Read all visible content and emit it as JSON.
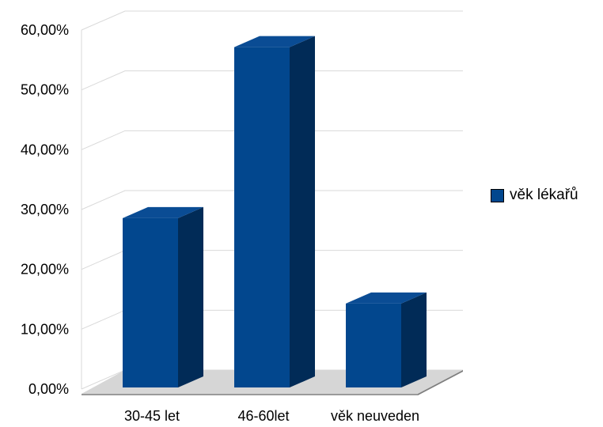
{
  "chart_data": {
    "type": "bar",
    "title": "",
    "xlabel": "",
    "ylabel": "",
    "categories": [
      "30-45 let",
      "46-60let",
      "věk neuveden"
    ],
    "series": [
      {
        "name": "věk lékařů",
        "values": [
          0.2857,
          0.5714,
          0.1429
        ]
      }
    ],
    "ylim": [
      0,
      0.6
    ],
    "yticks": [
      "0,00%",
      "10,00%",
      "20,00%",
      "30,00%",
      "40,00%",
      "50,00%",
      "60,00%"
    ],
    "grid": true,
    "legend_position": "right",
    "colors": {
      "bar_front": "#02478E",
      "bar_side": "#012B57",
      "bar_top": "#0A4C94",
      "floor": "#D6D6D6",
      "grid": "#D9D9D9"
    }
  }
}
